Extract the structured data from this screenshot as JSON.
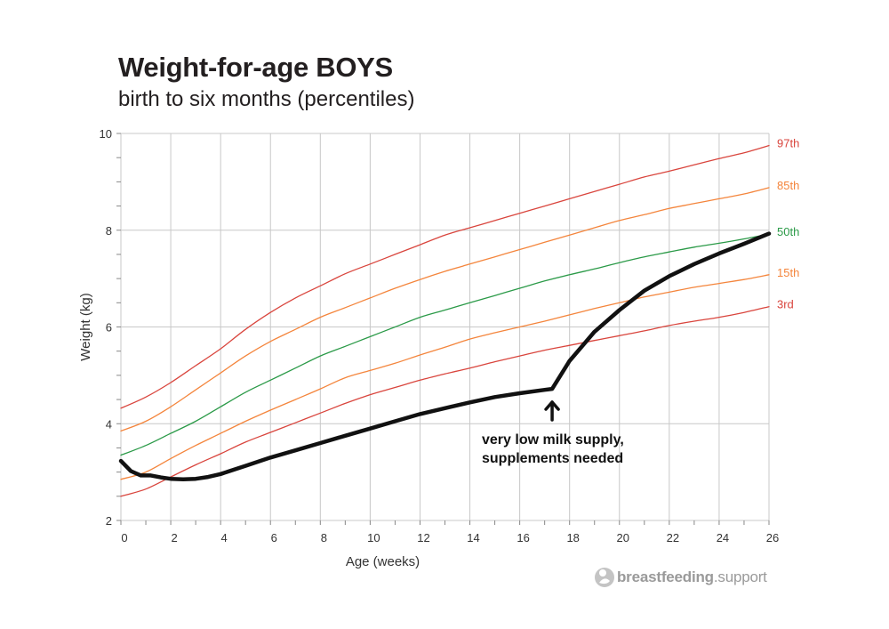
{
  "chart_data": {
    "type": "line",
    "title": "Weight-for-age BOYS",
    "subtitle": "birth to six months (percentiles)",
    "xlabel": "Age (weeks)",
    "ylabel": "Weight (kg)",
    "xlim": [
      0,
      26
    ],
    "ylim": [
      2,
      10
    ],
    "xticks": [
      0,
      2,
      4,
      6,
      8,
      10,
      12,
      14,
      16,
      18,
      20,
      22,
      24,
      26
    ],
    "yticks": [
      2,
      4,
      6,
      8,
      10
    ],
    "grid": true,
    "series": [
      {
        "name": "97th",
        "color": "#d9453d",
        "x": [
          0,
          1,
          2,
          3,
          4,
          5,
          6,
          7,
          8,
          9,
          10,
          11,
          12,
          13,
          14,
          15,
          16,
          17,
          18,
          19,
          20,
          21,
          22,
          23,
          24,
          25,
          26
        ],
        "y": [
          4.32,
          4.55,
          4.85,
          5.2,
          5.55,
          5.95,
          6.3,
          6.6,
          6.85,
          7.1,
          7.3,
          7.5,
          7.7,
          7.9,
          8.05,
          8.2,
          8.35,
          8.5,
          8.65,
          8.8,
          8.95,
          9.1,
          9.22,
          9.35,
          9.48,
          9.6,
          9.75
        ]
      },
      {
        "name": "85th",
        "color": "#f4853c",
        "x": [
          0,
          1,
          2,
          3,
          4,
          5,
          6,
          7,
          8,
          9,
          10,
          11,
          12,
          13,
          14,
          15,
          16,
          17,
          18,
          19,
          20,
          21,
          22,
          23,
          24,
          25,
          26
        ],
        "y": [
          3.85,
          4.05,
          4.35,
          4.7,
          5.05,
          5.4,
          5.7,
          5.95,
          6.2,
          6.4,
          6.6,
          6.8,
          6.98,
          7.15,
          7.3,
          7.45,
          7.6,
          7.75,
          7.9,
          8.05,
          8.2,
          8.32,
          8.45,
          8.55,
          8.65,
          8.75,
          8.88
        ]
      },
      {
        "name": "50th",
        "color": "#2b9a48",
        "x": [
          0,
          1,
          2,
          3,
          4,
          5,
          6,
          7,
          8,
          9,
          10,
          11,
          12,
          13,
          14,
          15,
          16,
          17,
          18,
          19,
          20,
          21,
          22,
          23,
          24,
          25,
          26
        ],
        "y": [
          3.35,
          3.55,
          3.8,
          4.05,
          4.35,
          4.65,
          4.9,
          5.15,
          5.4,
          5.6,
          5.8,
          6.0,
          6.2,
          6.35,
          6.5,
          6.65,
          6.8,
          6.95,
          7.08,
          7.2,
          7.33,
          7.45,
          7.55,
          7.65,
          7.73,
          7.82,
          7.92
        ]
      },
      {
        "name": "15th",
        "color": "#f4853c",
        "x": [
          0,
          1,
          2,
          3,
          4,
          5,
          6,
          7,
          8,
          9,
          10,
          11,
          12,
          13,
          14,
          15,
          16,
          17,
          18,
          19,
          20,
          21,
          22,
          23,
          24,
          25,
          26
        ],
        "y": [
          2.85,
          3.0,
          3.28,
          3.55,
          3.8,
          4.05,
          4.28,
          4.5,
          4.72,
          4.95,
          5.1,
          5.25,
          5.42,
          5.58,
          5.75,
          5.88,
          6.0,
          6.12,
          6.25,
          6.38,
          6.5,
          6.62,
          6.72,
          6.82,
          6.9,
          6.98,
          7.08
        ]
      },
      {
        "name": "3rd",
        "color": "#d9453d",
        "x": [
          0,
          1,
          2,
          3,
          4,
          5,
          6,
          7,
          8,
          9,
          10,
          11,
          12,
          13,
          14,
          15,
          16,
          17,
          18,
          19,
          20,
          21,
          22,
          23,
          24,
          25,
          26
        ],
        "y": [
          2.5,
          2.65,
          2.9,
          3.15,
          3.38,
          3.62,
          3.82,
          4.02,
          4.22,
          4.42,
          4.6,
          4.75,
          4.9,
          5.03,
          5.15,
          5.28,
          5.4,
          5.52,
          5.62,
          5.72,
          5.82,
          5.92,
          6.03,
          6.12,
          6.2,
          6.3,
          6.42
        ]
      },
      {
        "color": "#111111",
        "x": [
          0,
          0.4,
          0.8,
          1.2,
          1.6,
          2.0,
          2.5,
          3.0,
          3.5,
          4.0,
          5,
          6,
          7,
          8,
          9,
          10,
          11,
          12,
          13,
          14,
          15,
          16,
          17,
          17.3,
          18,
          19,
          20,
          21,
          22,
          23,
          24,
          25,
          26
        ],
        "y": [
          3.23,
          3.02,
          2.93,
          2.93,
          2.89,
          2.86,
          2.85,
          2.86,
          2.9,
          2.96,
          3.13,
          3.3,
          3.45,
          3.6,
          3.75,
          3.9,
          4.05,
          4.2,
          4.32,
          4.44,
          4.55,
          4.63,
          4.7,
          4.72,
          5.3,
          5.9,
          6.35,
          6.75,
          7.05,
          7.3,
          7.52,
          7.72,
          7.93
        ]
      }
    ],
    "annotation": {
      "lines": [
        "very low milk supply,",
        "supplements needed"
      ],
      "arrow_x": 17.3
    }
  },
  "brand": {
    "bold": "breastfeeding",
    "rest": ".support"
  }
}
